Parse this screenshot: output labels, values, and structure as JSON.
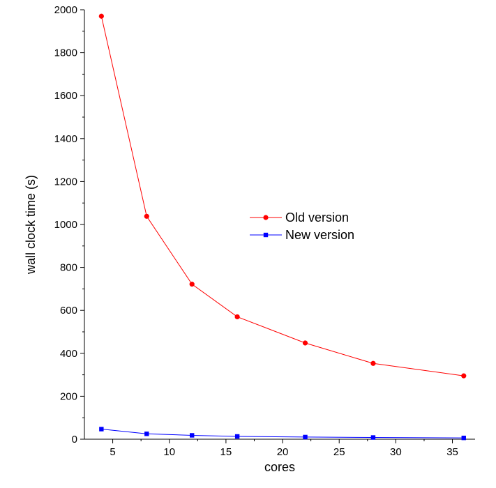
{
  "chart_data": {
    "type": "line",
    "xlabel": "cores",
    "ylabel": "wall clock time (s)",
    "xlim": [
      2.5,
      37
    ],
    "ylim": [
      0,
      2000
    ],
    "xticks": [
      5,
      10,
      15,
      20,
      25,
      30,
      35
    ],
    "yticks": [
      0,
      200,
      400,
      600,
      800,
      1000,
      1200,
      1400,
      1600,
      1800,
      2000
    ],
    "grid": false,
    "legend_position": "center-right",
    "series": [
      {
        "name": "Old version",
        "color": "#ff0000",
        "marker": "circle",
        "x": [
          4,
          8,
          12,
          16,
          22,
          28,
          36
        ],
        "y": [
          1970,
          1038,
          722,
          570,
          448,
          353,
          295
        ]
      },
      {
        "name": "New version",
        "color": "#0000ff",
        "marker": "square",
        "x": [
          4,
          8,
          12,
          16,
          22,
          28,
          36
        ],
        "y": [
          47,
          25,
          18,
          13,
          10,
          8,
          6
        ]
      }
    ]
  }
}
